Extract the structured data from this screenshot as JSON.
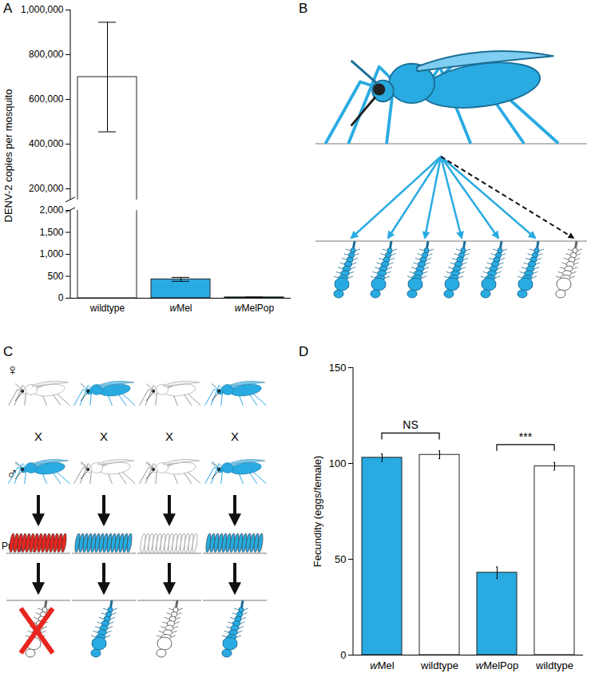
{
  "chart_data": [
    {
      "type": "bar",
      "title": "A",
      "categories": [
        "wildtype",
        "wMel",
        "wMelPop"
      ],
      "values": [
        700000,
        430,
        20
      ],
      "error": [
        245000,
        45,
        5
      ],
      "colors": [
        "#ffffff",
        "#29abe2",
        "#29abe2"
      ],
      "y_label": "DENV-2 copies per mosquito",
      "axis_segments": [
        {
          "ylim": [
            0,
            2000
          ],
          "yticks": [
            0,
            500,
            {
              "value": 1000,
              "label": "1,000"
            },
            {
              "value": 1500,
              "label": "1,500"
            },
            {
              "value": 2000,
              "label": "2,000"
            }
          ]
        },
        {
          "ylim": [
            150000,
            1000000
          ],
          "yticks": [
            {
              "value": 200000,
              "label": "200,000"
            },
            {
              "value": 400000,
              "label": "400,000"
            },
            {
              "value": 600000,
              "label": "600,000"
            },
            {
              "value": 800000,
              "label": "800,000"
            },
            {
              "value": 1000000,
              "label": "1,000,000"
            }
          ]
        }
      ]
    },
    {
      "type": "bar",
      "title": "D",
      "categories": [
        "wMel",
        "wildtype",
        "wMelPop",
        "wildtype"
      ],
      "values": [
        103,
        104.5,
        43,
        98.5
      ],
      "error": [
        2,
        2,
        3,
        2
      ],
      "colors": [
        "#29abe2",
        "#ffffff",
        "#29abe2",
        "#ffffff"
      ],
      "y_label": "Fecundity (eggs/female)",
      "ylim": [
        0,
        150
      ],
      "yticks": [
        0,
        50,
        100,
        150
      ],
      "annotations": [
        {
          "text": "NS",
          "between": [
            0,
            1
          ]
        },
        {
          "text": "***",
          "between": [
            2,
            3
          ]
        }
      ]
    }
  ],
  "diagrams": [
    {
      "label": "B"
    },
    {
      "label": "C",
      "female_symbol": "♀",
      "male_symbol": "♂",
      "cross_symbol": "X",
      "progeny_label": "Progeny"
    }
  ]
}
